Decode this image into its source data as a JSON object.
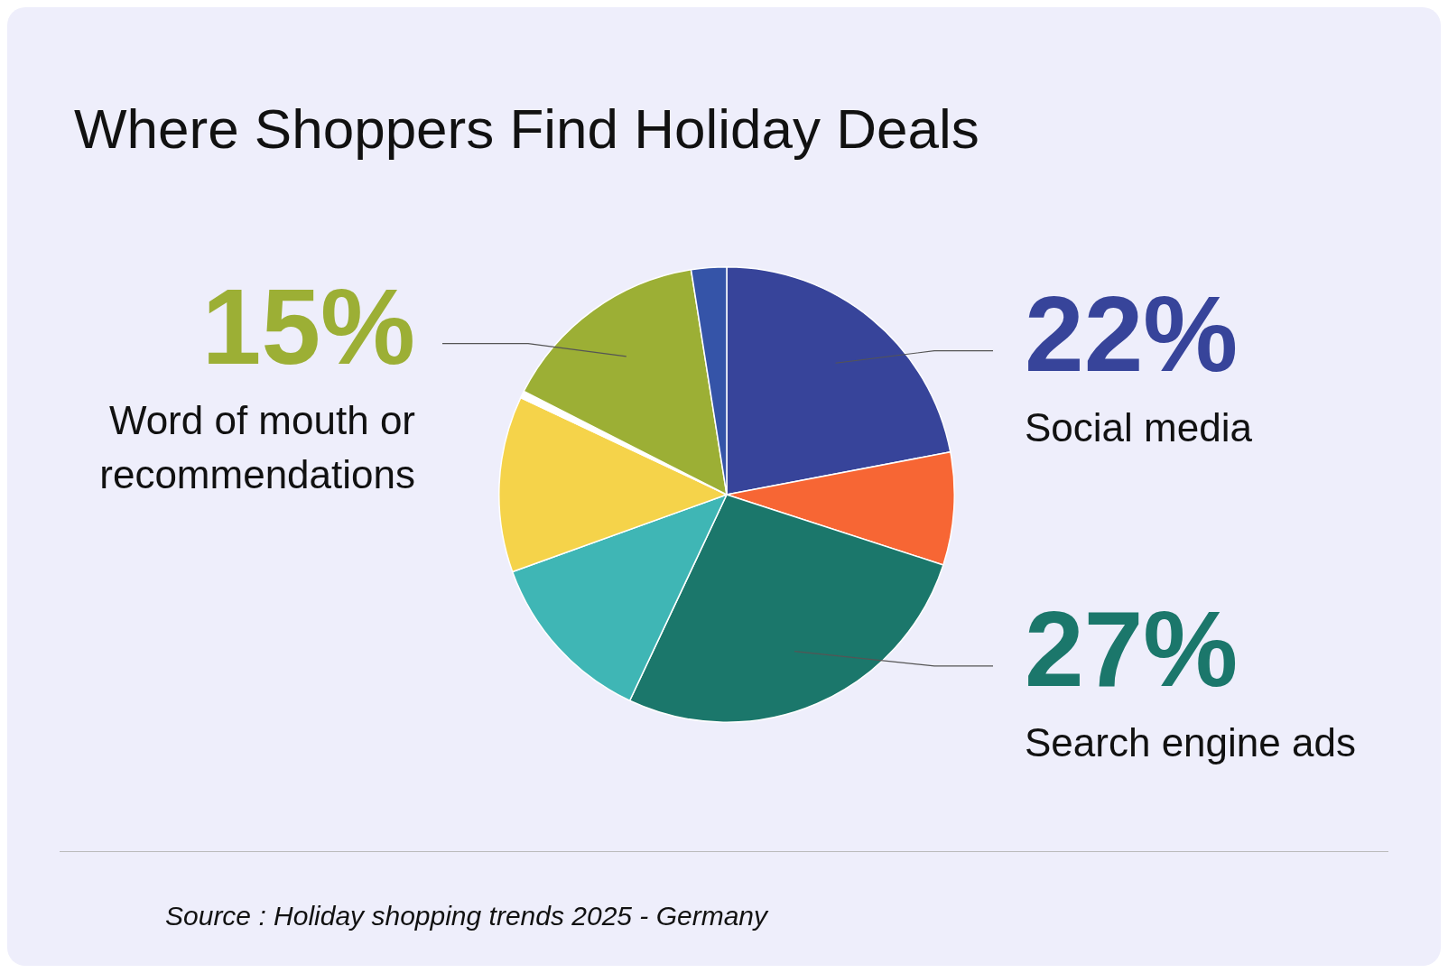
{
  "chart_data": {
    "type": "pie",
    "title": "Where Shoppers Find Holiday Deals",
    "categories": [
      "Social media",
      null,
      "Search engine ads",
      null,
      null,
      null,
      "Word of mouth or recommendations",
      null
    ],
    "values": [
      22,
      8,
      27,
      12.5,
      12.5,
      0.5,
      15,
      2.5
    ],
    "colors": [
      "#37449a",
      "#f76634",
      "#1b776b",
      "#3fb6b5",
      "#f5d34a",
      "#ffffff",
      "#9caf35",
      "#3554a8"
    ],
    "value_labels": [
      "22%",
      null,
      "27%",
      null,
      null,
      null,
      "15%",
      null
    ],
    "legend": false,
    "annotations": [
      "Source : Holiday shopping trends 2025 - Germany"
    ]
  }
}
